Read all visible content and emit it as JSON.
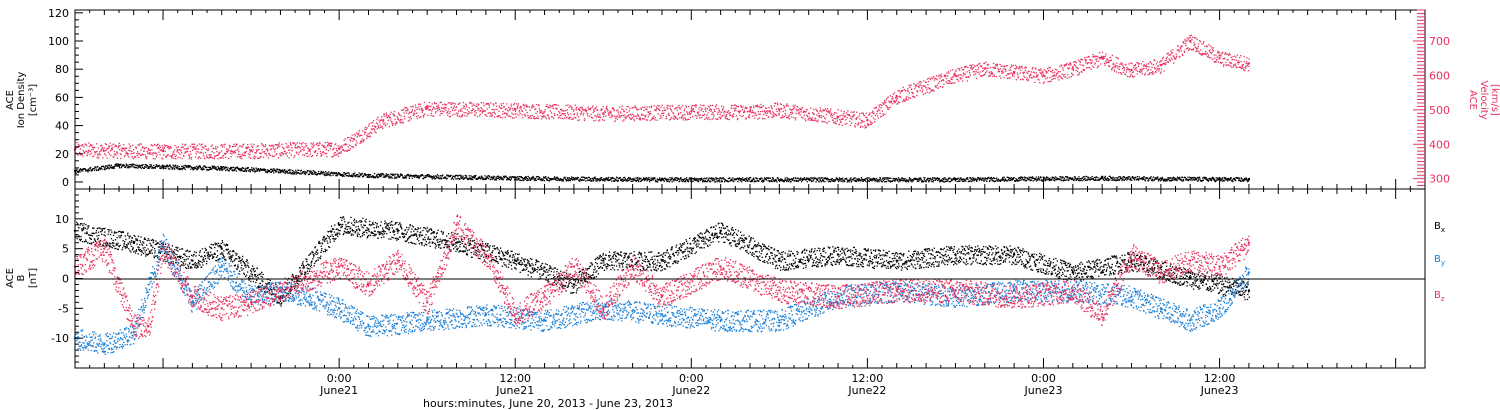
{
  "chart_data": [
    {
      "type": "scatter",
      "panel": "top",
      "left_axis": {
        "title_lines": [
          "ACE",
          "Ion Density",
          "[cm⁻³]"
        ],
        "ylim": [
          -5,
          122
        ],
        "ticks": [
          0,
          20,
          40,
          60,
          80,
          100,
          120
        ],
        "tick_labels": [
          "0",
          "20",
          "40",
          "60",
          "80",
          "100",
          "120"
        ]
      },
      "right_axis": {
        "title_lines": [
          "ACE",
          "Velocity",
          "[km/s]"
        ],
        "ylim": [
          270,
          790
        ],
        "ticks": [
          300,
          400,
          500,
          600,
          700
        ],
        "tick_labels": [
          "300",
          "400",
          "500",
          "600",
          "700"
        ],
        "color": "#e8325f"
      },
      "series": [
        {
          "axis": "right",
          "color": "#e8325f",
          "x": [
            0,
            6,
            12,
            18,
            21,
            24,
            30,
            36,
            42,
            46,
            48,
            52,
            54,
            56,
            60,
            62,
            64,
            66,
            68,
            70,
            72,
            74,
            76,
            78,
            80
          ],
          "y": [
            385,
            380,
            382,
            388,
            470,
            505,
            500,
            490,
            495,
            495,
            500,
            480,
            470,
            540,
            600,
            620,
            610,
            600,
            620,
            650,
            615,
            630,
            700,
            650,
            635
          ]
        },
        {
          "axis": "left",
          "color": "#000000",
          "x": [
            0,
            3,
            6,
            10,
            14,
            20,
            30,
            40,
            50,
            60,
            70,
            80
          ],
          "y": [
            8,
            12,
            11,
            10,
            8,
            5,
            3,
            2,
            2,
            2,
            3,
            2
          ]
        }
      ]
    },
    {
      "type": "scatter",
      "panel": "bottom",
      "left_axis": {
        "title_lines": [
          "ACE",
          "B",
          "[nT]"
        ],
        "ylim": [
          -15,
          15
        ],
        "ticks": [
          -10,
          -5,
          0,
          5,
          10
        ],
        "tick_labels": [
          "-10",
          "-5",
          "0",
          "5",
          "10"
        ]
      },
      "zero_line": true,
      "legend": {
        "placement": "right",
        "entries": [
          {
            "label": "B",
            "sub": "x",
            "color": "#000000"
          },
          {
            "label": "B",
            "sub": "y",
            "color": "#1a7fd6"
          },
          {
            "label": "B",
            "sub": "z",
            "color": "#e8325f"
          }
        ]
      },
      "series": [
        {
          "name": "Bx",
          "color": "#000000",
          "x": [
            0,
            4,
            8,
            10,
            14,
            18,
            22,
            26,
            30,
            34,
            36,
            40,
            44,
            48,
            52,
            56,
            60,
            64,
            68,
            72,
            76,
            80
          ],
          "y": [
            8,
            6,
            3,
            5,
            -3,
            9,
            8,
            6,
            3,
            -1,
            3,
            3,
            8,
            3,
            4,
            3,
            4,
            4,
            1,
            3,
            0,
            -2
          ]
        },
        {
          "name": "By",
          "color": "#1a7fd6",
          "x": [
            0,
            2,
            4,
            6,
            8,
            10,
            12,
            14,
            16,
            18,
            20,
            24,
            28,
            32,
            36,
            40,
            44,
            48,
            52,
            56,
            60,
            64,
            68,
            72,
            74,
            76,
            78,
            80
          ],
          "y": [
            -10,
            -11,
            -9,
            6,
            -4,
            2,
            -3,
            -2,
            -3,
            -5,
            -8,
            -7,
            -6,
            -7,
            -5,
            -6,
            -7,
            -7,
            -3,
            -2,
            -3,
            -2,
            -2,
            -3,
            -5,
            -7,
            -5,
            1
          ]
        },
        {
          "name": "Bz",
          "color": "#e8325f",
          "x": [
            0,
            2,
            4,
            5,
            6,
            8,
            10,
            12,
            14,
            16,
            18,
            20,
            22,
            24,
            26,
            28,
            30,
            32,
            34,
            36,
            38,
            40,
            44,
            48,
            52,
            56,
            60,
            64,
            68,
            70,
            72,
            74,
            76,
            78,
            80
          ],
          "y": [
            2,
            5,
            -8,
            -8,
            5,
            -3,
            -5,
            -4,
            -2,
            0,
            2,
            -1,
            3,
            -4,
            9,
            4,
            -6,
            -3,
            2,
            -5,
            2,
            -3,
            2,
            -2,
            -3,
            -2,
            -2,
            -3,
            -2,
            -6,
            4,
            1,
            3,
            2,
            6
          ]
        }
      ]
    }
  ],
  "x_axis": {
    "range": [
      0,
      92
    ],
    "major_ticks": [
      18,
      30,
      42,
      54,
      66,
      78
    ],
    "tick_labels": [
      {
        "time": "0:00",
        "day": "June21"
      },
      {
        "time": "12:00",
        "day": "June21"
      },
      {
        "time": "0:00",
        "day": "June22"
      },
      {
        "time": "12:00",
        "day": "June22"
      },
      {
        "time": "0:00",
        "day": "June23"
      },
      {
        "time": "12:00",
        "day": "June23"
      }
    ],
    "title": "hours:minutes, June 20, 2013 - June 23, 2013"
  }
}
